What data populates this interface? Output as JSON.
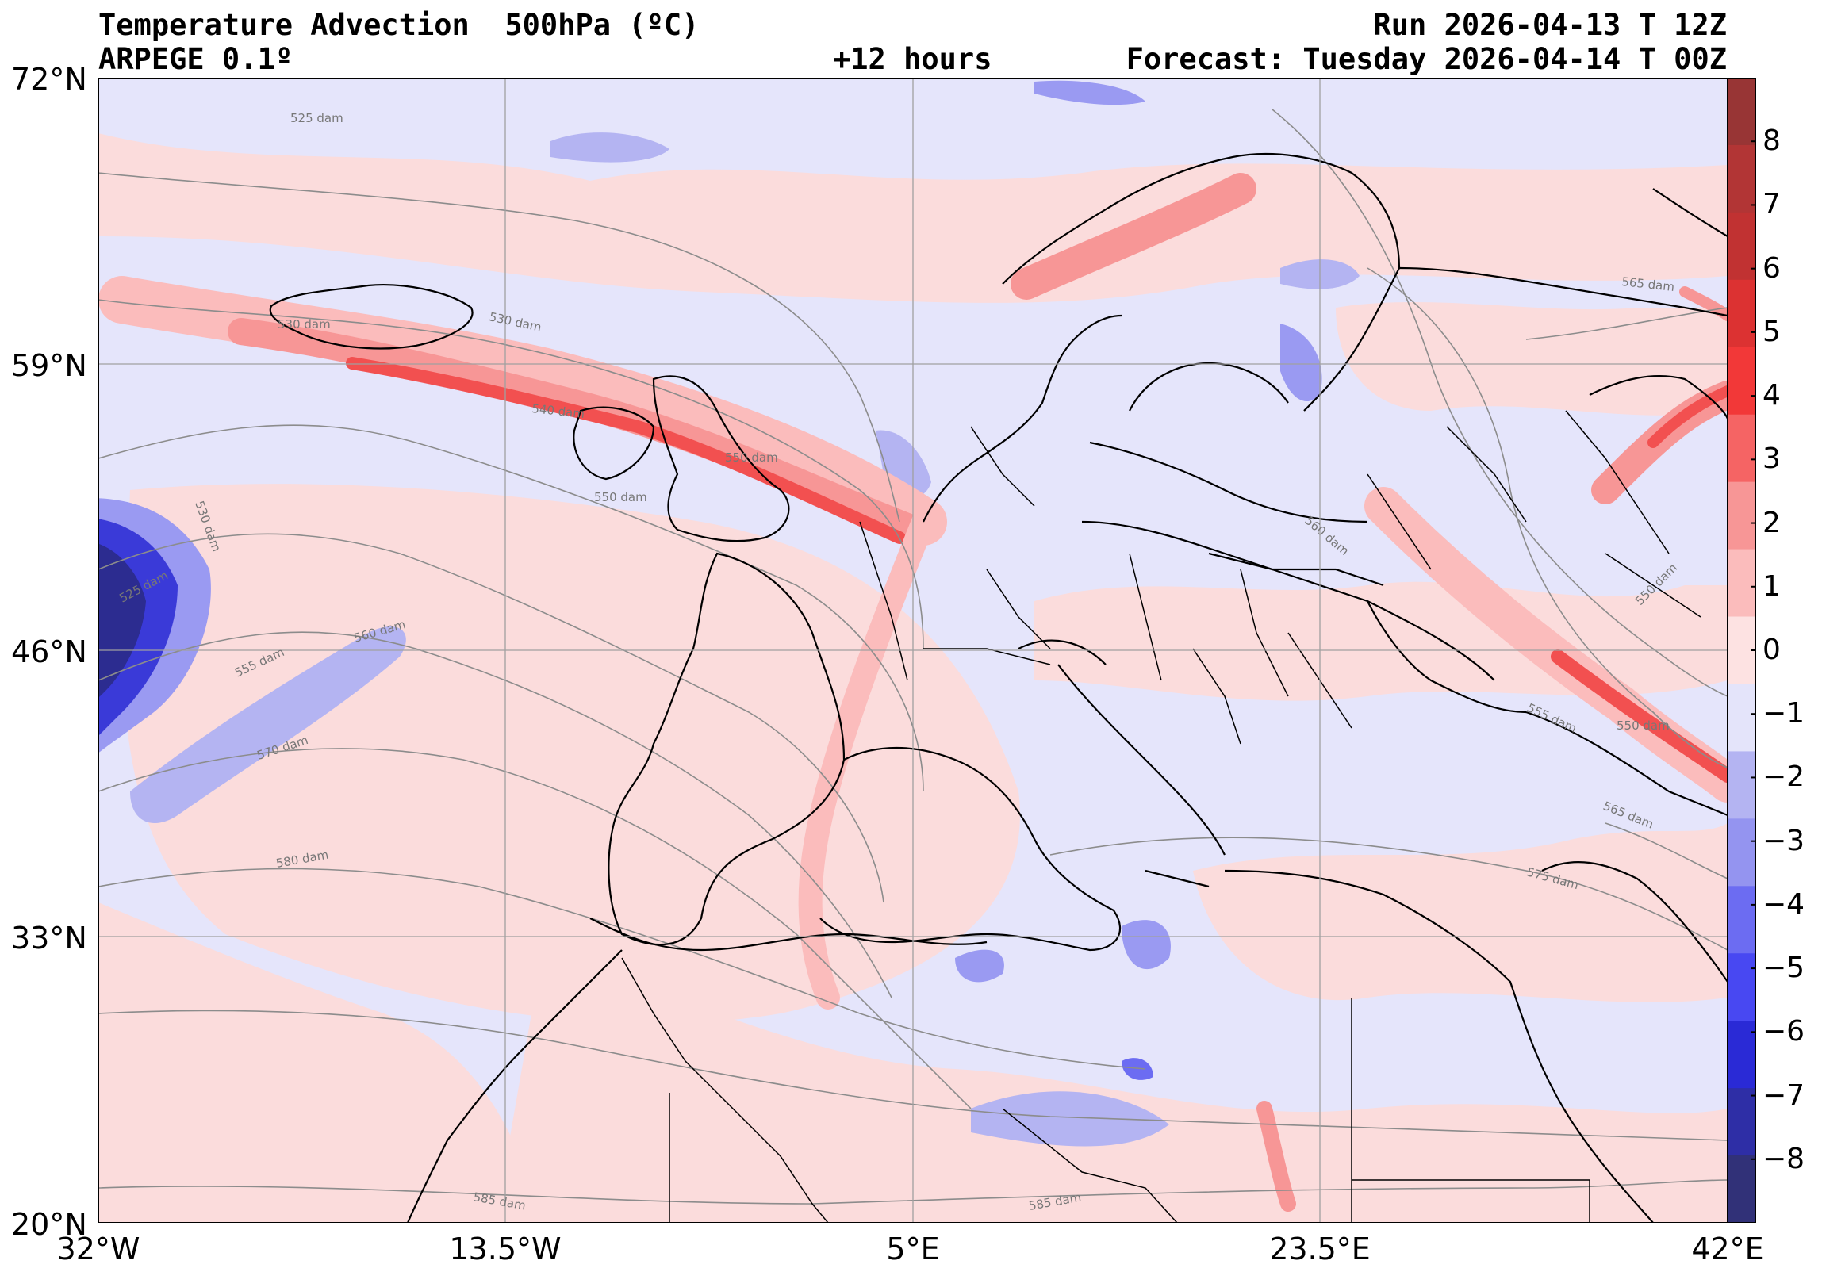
{
  "header": {
    "title_left": "Temperature Advection  500hPa (ºC)",
    "model": "ARPEGE 0.1º",
    "lead_time": "+12 hours",
    "run": "Run 2026-04-13 T 12Z",
    "forecast": "Forecast: Tuesday 2026-04-14 T 00Z"
  },
  "axes": {
    "lat_labels": [
      "72°N",
      "59°N",
      "46°N",
      "33°N",
      "20°N"
    ],
    "lon_labels": [
      "32°W",
      "13.5°W",
      "5°E",
      "23.5°E",
      "42°E"
    ]
  },
  "map_data": {
    "extent": {
      "lon": [
        -32,
        42
      ],
      "lat": [
        20,
        72
      ]
    },
    "gridlines": true,
    "contour_labels": [
      "525 dam",
      "530 dam",
      "530 dam",
      "540 dam",
      "550 dam",
      "550 dam",
      "525 dam",
      "530 dam",
      "555 dam",
      "560 dam",
      "570 dam",
      "580 dam",
      "585 dam",
      "585 dam",
      "565 dam",
      "560 dam",
      "550 dam",
      "555 dam",
      "550 dam",
      "565 dam",
      "575 dam"
    ]
  },
  "colorbar": {
    "tick_labels": [
      "8",
      "7",
      "6",
      "5",
      "4",
      "3",
      "2",
      "1",
      "0",
      "−1",
      "−2",
      "−3",
      "−4",
      "−5",
      "−6",
      "−7",
      "−8"
    ],
    "range": [
      -9,
      9
    ],
    "colors": [
      "#313178",
      "#2e2ea6",
      "#2a2ad6",
      "#4848f2",
      "#6c6cf2",
      "#9494f0",
      "#b4b4f2",
      "#e4e4fa",
      "#fde2e2",
      "#fbbcbc",
      "#f79696",
      "#f56464",
      "#f23838",
      "#dc3232",
      "#c13232",
      "#b23535",
      "#983535"
    ]
  }
}
